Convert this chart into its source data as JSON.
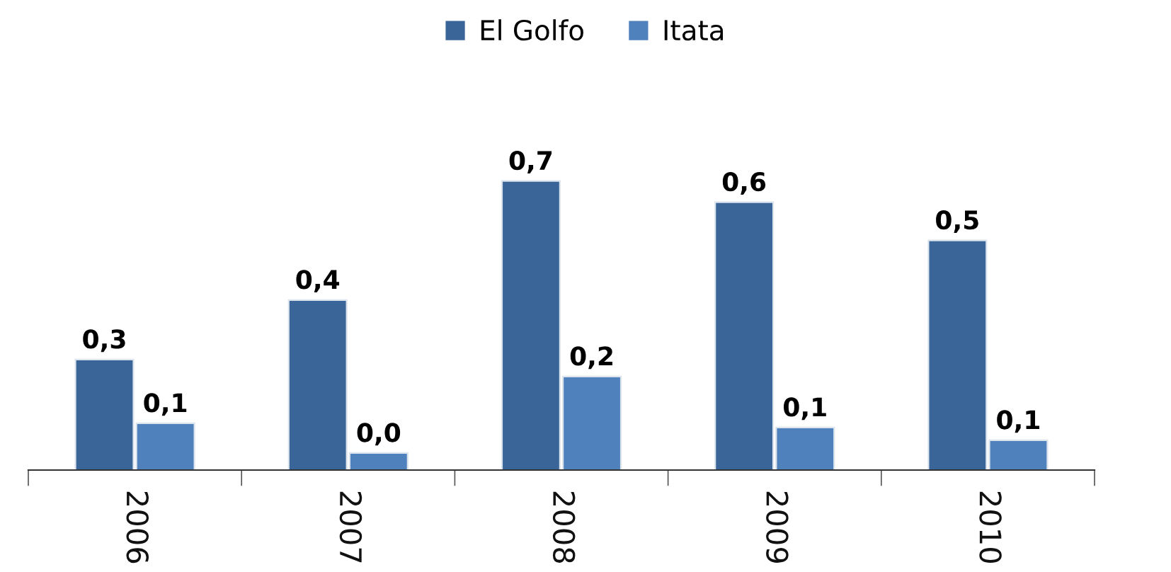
{
  "chart_data": {
    "type": "bar",
    "categories": [
      "2006",
      "2007",
      "2008",
      "2009",
      "2010"
    ],
    "series": [
      {
        "name": "El Golfo",
        "color": "#3a6598",
        "values": [
          0.26,
          0.4,
          0.68,
          0.63,
          0.54
        ],
        "value_labels": [
          "0,3",
          "0,4",
          "0,7",
          "0,6",
          "0,5"
        ]
      },
      {
        "name": "Itata",
        "color": "#4f81bd",
        "values": [
          0.11,
          0.04,
          0.22,
          0.1,
          0.07
        ],
        "value_labels": [
          "0,1",
          "0,0",
          "0,2",
          "0,1",
          "0,1"
        ]
      }
    ],
    "legend": "top"
  }
}
